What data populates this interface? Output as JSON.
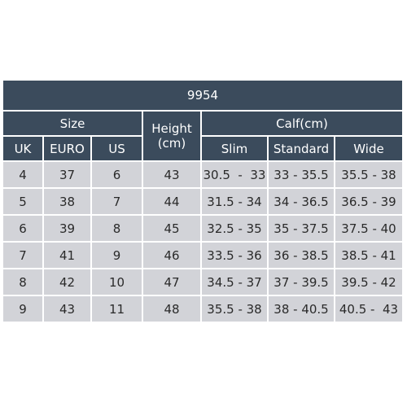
{
  "table": {
    "title": "9954",
    "group_size": "Size",
    "height_label": "Height\n(cm)",
    "group_calf": "Calf(cm)",
    "columns": [
      "UK",
      "EURO",
      "US",
      "Height (cm)",
      "Slim",
      "Standard",
      "Wide"
    ],
    "sub_uk": "UK",
    "sub_euro": "EURO",
    "sub_us": "US",
    "sub_slim": "Slim",
    "sub_standard": "Standard",
    "sub_wide": "Wide",
    "rows": [
      [
        "4",
        "37",
        "6",
        "43",
        "30.5  -  33",
        "33 - 35.5",
        "35.5 - 38"
      ],
      [
        "5",
        "38",
        "7",
        "44",
        "31.5 - 34",
        "34 - 36.5",
        "36.5 - 39"
      ],
      [
        "6",
        "39",
        "8",
        "45",
        "32.5 - 35",
        "35 - 37.5",
        "37.5 - 40"
      ],
      [
        "7",
        "41",
        "9",
        "46",
        "33.5 - 36",
        "36 - 38.5",
        "38.5 - 41"
      ],
      [
        "8",
        "42",
        "10",
        "47",
        "34.5 - 37",
        "37 - 39.5",
        "39.5 - 42"
      ],
      [
        "9",
        "43",
        "11",
        "48",
        "35.5 - 38",
        "38 - 40.5",
        "40.5 -  43"
      ]
    ]
  },
  "colors": {
    "header_bg": "#3b4b5c",
    "header_text": "#ffffff",
    "body_bg": "#d2d3d8",
    "body_text": "#2a2a2a",
    "grid": "#ffffff"
  }
}
